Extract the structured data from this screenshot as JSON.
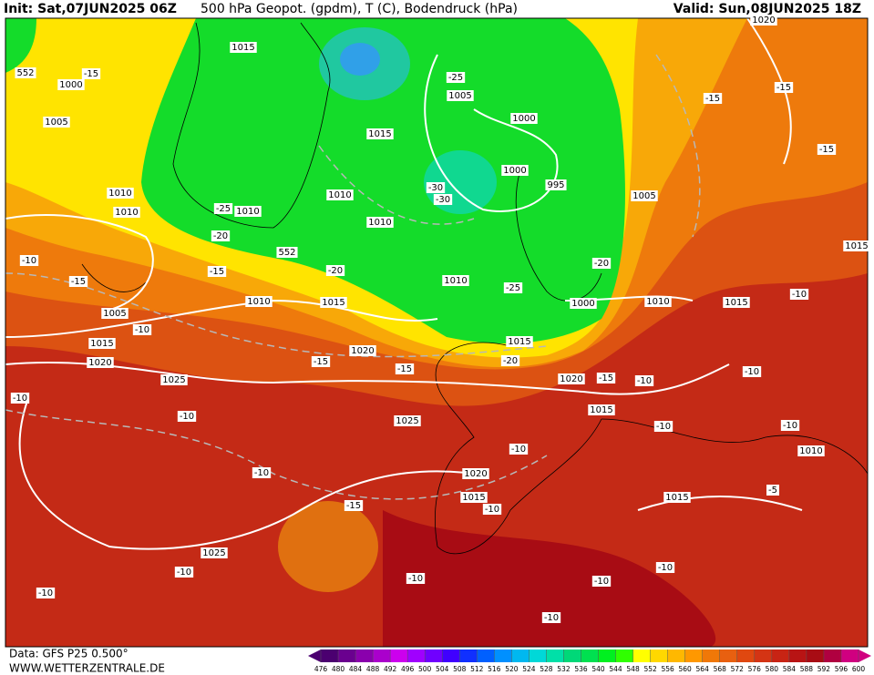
{
  "header": {
    "init": "Init: Sat,07JUN2025 06Z",
    "title": "500 hPa Geopot. (gpdm), T (C), Bodendruck (hPa)",
    "valid": "Valid: Sun,08JUN2025 18Z"
  },
  "footer": {
    "source": "Data: GFS P25 0.500°",
    "site": "WWW.WETTERZENTRALE.DE"
  },
  "colorbar": {
    "ticks": [
      476,
      480,
      484,
      488,
      492,
      496,
      500,
      504,
      508,
      512,
      516,
      520,
      524,
      528,
      532,
      536,
      540,
      544,
      548,
      552,
      556,
      560,
      564,
      568,
      572,
      576,
      580,
      584,
      588,
      592,
      596,
      600
    ],
    "colors": [
      "#4b0070",
      "#6a008f",
      "#8a00ad",
      "#aa00cc",
      "#cc00ee",
      "#a000ff",
      "#7000ff",
      "#4000ff",
      "#1030ff",
      "#0060ff",
      "#0090ff",
      "#00b8f0",
      "#00d8d8",
      "#00e0a8",
      "#00d878",
      "#00e050",
      "#00f020",
      "#30ff00",
      "#ffff00",
      "#ffd800",
      "#ffb800",
      "#ff9800",
      "#f07808",
      "#e86010",
      "#e04810",
      "#d43414",
      "#c82414",
      "#b81414",
      "#a80c14",
      "#b00040",
      "#d00080"
    ]
  },
  "map_labels": [
    "1015",
    "1000",
    "-15",
    "552",
    "1005",
    "-25",
    "1005",
    "1000",
    "1015",
    "1000",
    "995",
    "-30",
    "-30",
    "1010",
    "1010",
    "1010",
    "-25",
    "1010",
    "-20",
    "1010",
    "552",
    "-15",
    "-20",
    "-20",
    "1010",
    "-25",
    "1000",
    "1010",
    "1015",
    "1005",
    "-10",
    "1015",
    "1020",
    "1020",
    "-15",
    "-15",
    "-20",
    "1015",
    "1020",
    "-15",
    "-10",
    "1025",
    "-10",
    "-10",
    "1025",
    "1015",
    "-10",
    "-10",
    "-10",
    "1020",
    "1015",
    "-10",
    "-15",
    "1015",
    "-5",
    "1025",
    "-10",
    "-10",
    "-10",
    "-10",
    "-10",
    "-10",
    "1020",
    "-15",
    "-15",
    "-15",
    "1005",
    "1015",
    "-10",
    "1015",
    "1010",
    "-10",
    "1010",
    "-10",
    "-10",
    "-15"
  ]
}
